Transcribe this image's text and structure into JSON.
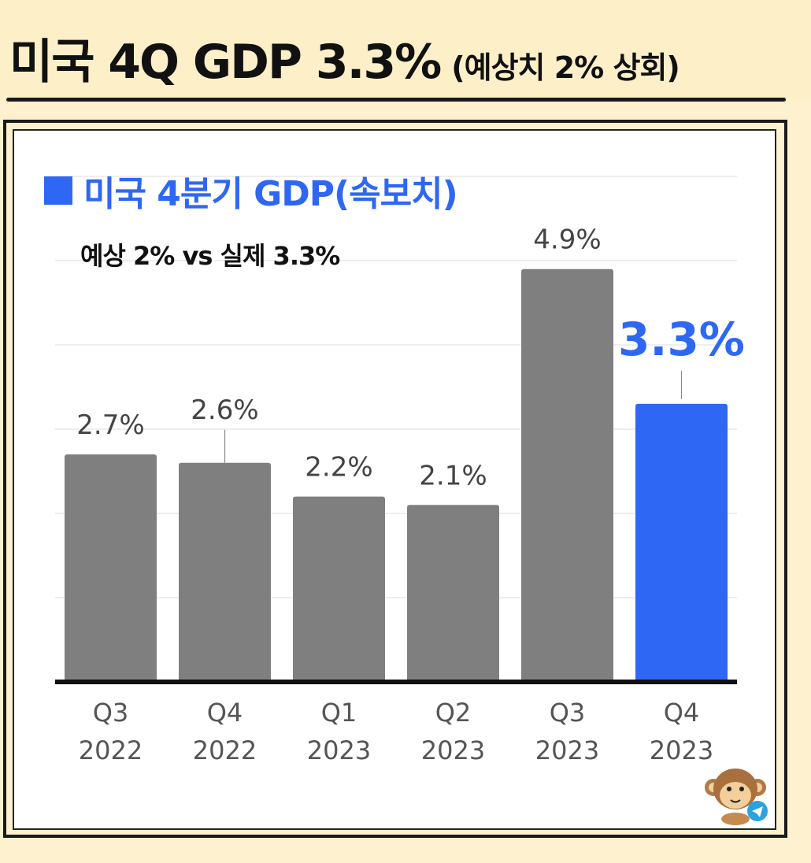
{
  "header": {
    "title": "미국 4Q GDP 3.3%",
    "subtitle": "(예상치 2% 상회)"
  },
  "colors": {
    "accent": "#2f67f5",
    "bar_default": "#7f7f7f",
    "background": "#fdf1cf"
  },
  "chart_data": {
    "type": "bar",
    "title": "미국 4분기 GDP(속보치)",
    "annotation": "예상 2% vs 실제 3.3%",
    "categories": [
      "Q3\n2022",
      "Q4\n2022",
      "Q1\n2023",
      "Q2\n2023",
      "Q3\n2023",
      "Q4\n2023"
    ],
    "category_lines": [
      [
        "Q3",
        "2022"
      ],
      [
        "Q4",
        "2022"
      ],
      [
        "Q1",
        "2023"
      ],
      [
        "Q2",
        "2023"
      ],
      [
        "Q3",
        "2023"
      ],
      [
        "Q4",
        "2023"
      ]
    ],
    "values": [
      2.7,
      2.6,
      2.2,
      2.1,
      4.9,
      3.3
    ],
    "data_labels": [
      "2.7%",
      "2.6%",
      "2.2%",
      "2.1%",
      "4.9%",
      "3.3%"
    ],
    "highlight_index": 5,
    "xlabel": "",
    "ylabel": "",
    "ylim": [
      0,
      6
    ],
    "grid": true,
    "legend": "top-left"
  },
  "icons": {
    "mascot": "monkey-mascot-icon",
    "badge": "telegram-icon"
  }
}
